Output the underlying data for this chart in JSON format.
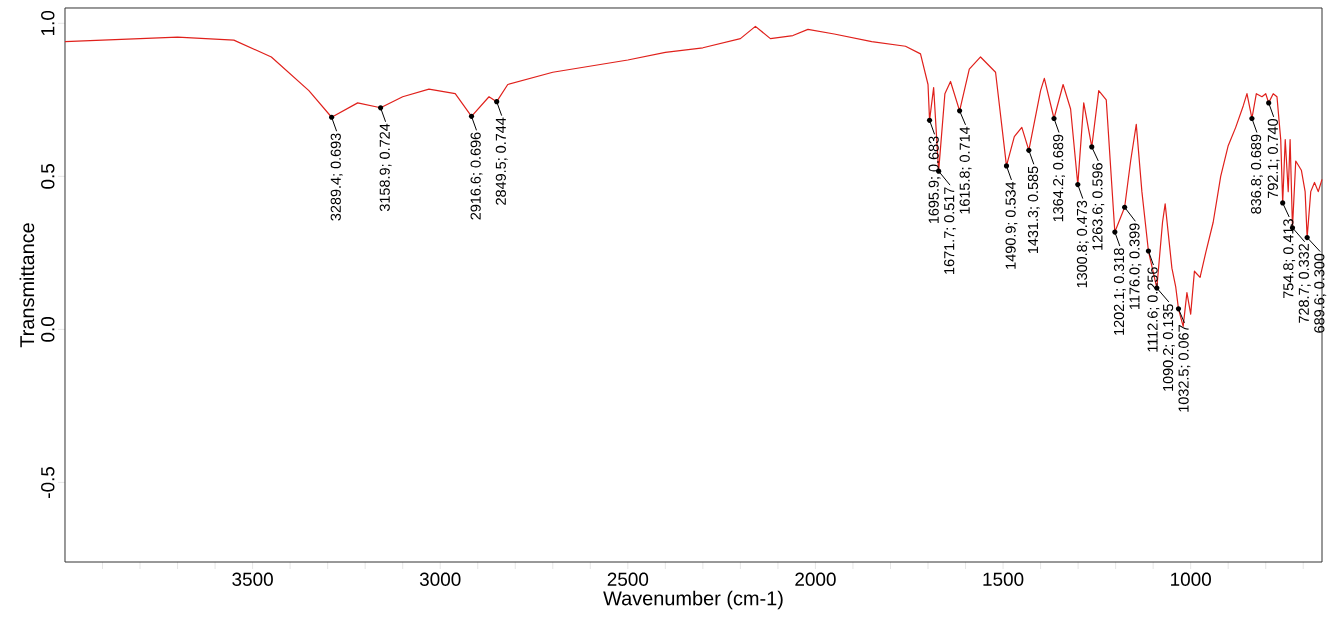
{
  "chart_data": {
    "type": "line",
    "xlabel": "Wavenumber (cm-1)",
    "ylabel": "Transmittance",
    "color": "#e0201b",
    "xlim": [
      4000,
      650
    ],
    "ylim": [
      -0.76,
      1.05
    ],
    "xticks": [
      {
        "value": 3900,
        "label": null
      },
      {
        "value": 3800,
        "label": null
      },
      {
        "value": 3700,
        "label": null
      },
      {
        "value": 3600,
        "label": null
      },
      {
        "value": 3500,
        "label": "3500"
      },
      {
        "value": 3400,
        "label": null
      },
      {
        "value": 3300,
        "label": null
      },
      {
        "value": 3200,
        "label": null
      },
      {
        "value": 3100,
        "label": null
      },
      {
        "value": 3000,
        "label": "3000"
      },
      {
        "value": 2900,
        "label": null
      },
      {
        "value": 2800,
        "label": null
      },
      {
        "value": 2700,
        "label": null
      },
      {
        "value": 2600,
        "label": null
      },
      {
        "value": 2500,
        "label": "2500"
      },
      {
        "value": 2400,
        "label": null
      },
      {
        "value": 2300,
        "label": null
      },
      {
        "value": 2200,
        "label": null
      },
      {
        "value": 2100,
        "label": null
      },
      {
        "value": 2000,
        "label": "2000"
      },
      {
        "value": 1900,
        "label": null
      },
      {
        "value": 1800,
        "label": null
      },
      {
        "value": 1700,
        "label": null
      },
      {
        "value": 1600,
        "label": null
      },
      {
        "value": 1500,
        "label": "1500"
      },
      {
        "value": 1400,
        "label": null
      },
      {
        "value": 1300,
        "label": null
      },
      {
        "value": 1200,
        "label": null
      },
      {
        "value": 1100,
        "label": null
      },
      {
        "value": 1000,
        "label": "1000"
      },
      {
        "value": 900,
        "label": null
      },
      {
        "value": 800,
        "label": null
      },
      {
        "value": 700,
        "label": null
      }
    ],
    "yticks": [
      {
        "value": 1,
        "label": "1.0"
      },
      {
        "value": 0.5,
        "label": "0.5"
      },
      {
        "value": 0,
        "label": "0.0"
      },
      {
        "value": -0.5,
        "label": "-0.5"
      }
    ],
    "x": [
      4000,
      3700,
      3550,
      3450,
      3350,
      3289.4,
      3220,
      3158.9,
      3100,
      3030,
      2960,
      2916.6,
      2870,
      2849.5,
      2820,
      2700,
      2500,
      2400,
      2300,
      2200,
      2160,
      2120,
      2060,
      2020,
      1950,
      1850,
      1760,
      1720,
      1700,
      1695.9,
      1685,
      1671.7,
      1655,
      1640,
      1615.8,
      1590,
      1560,
      1520,
      1490.9,
      1470,
      1450,
      1431.3,
      1400,
      1390,
      1364.2,
      1340,
      1320,
      1300.8,
      1285,
      1263.6,
      1245,
      1225,
      1202.1,
      1176,
      1160,
      1145,
      1130,
      1112.6,
      1090.2,
      1075,
      1068,
      1050,
      1040,
      1032.5,
      1020,
      1010,
      1000,
      990,
      975,
      960,
      940,
      920,
      900,
      880,
      860,
      850,
      836.8,
      825,
      810,
      800,
      792.1,
      780,
      770,
      760,
      754.8,
      748,
      740,
      735,
      728.7,
      720,
      705,
      695,
      689.6,
      680,
      670,
      660,
      650
    ],
    "values": [
      0.94,
      0.955,
      0.945,
      0.89,
      0.78,
      0.693,
      0.74,
      0.724,
      0.76,
      0.785,
      0.77,
      0.696,
      0.76,
      0.744,
      0.8,
      0.84,
      0.88,
      0.905,
      0.92,
      0.95,
      0.99,
      0.95,
      0.96,
      0.98,
      0.965,
      0.94,
      0.925,
      0.9,
      0.8,
      0.683,
      0.79,
      0.517,
      0.77,
      0.81,
      0.714,
      0.85,
      0.89,
      0.84,
      0.534,
      0.63,
      0.66,
      0.585,
      0.78,
      0.82,
      0.689,
      0.8,
      0.72,
      0.473,
      0.74,
      0.596,
      0.78,
      0.75,
      0.318,
      0.399,
      0.55,
      0.67,
      0.45,
      0.256,
      0.135,
      0.35,
      0.41,
      0.2,
      0.14,
      0.067,
      0.01,
      0.12,
      0.05,
      0.19,
      0.17,
      0.25,
      0.35,
      0.5,
      0.6,
      0.66,
      0.73,
      0.77,
      0.689,
      0.77,
      0.76,
      0.77,
      0.74,
      0.77,
      0.76,
      0.62,
      0.413,
      0.62,
      0.45,
      0.62,
      0.332,
      0.55,
      0.52,
      0.45,
      0.3,
      0.45,
      0.48,
      0.45,
      0.49
    ],
    "annotations": [
      {
        "text": "3289.4; 0.693",
        "x": 3289.4,
        "y": 0.693
      },
      {
        "text": "3158.9; 0.724",
        "x": 3158.9,
        "y": 0.724
      },
      {
        "text": "2916.6; 0.696",
        "x": 2916.6,
        "y": 0.696
      },
      {
        "text": "2849.5; 0.744",
        "x": 2849.5,
        "y": 0.744
      },
      {
        "text": "1695.9; 0.683",
        "x": 1695.9,
        "y": 0.683
      },
      {
        "text": "1671.7; 0.517",
        "x": 1671.7,
        "y": 0.517
      },
      {
        "text": "1615.8; 0.714",
        "x": 1615.8,
        "y": 0.714
      },
      {
        "text": "1490.9; 0.534",
        "x": 1490.9,
        "y": 0.534
      },
      {
        "text": "1431.3; 0.585",
        "x": 1431.3,
        "y": 0.585
      },
      {
        "text": "1364.2; 0.689",
        "x": 1364.2,
        "y": 0.689
      },
      {
        "text": "1300.8; 0.473",
        "x": 1300.8,
        "y": 0.473
      },
      {
        "text": "1263.6; 0.596",
        "x": 1263.6,
        "y": 0.596
      },
      {
        "text": "1202.1; 0.318",
        "x": 1202.1,
        "y": 0.318
      },
      {
        "text": "1176.0; 0.399",
        "x": 1176.0,
        "y": 0.399
      },
      {
        "text": "1112.6; 0.256",
        "x": 1112.6,
        "y": 0.256
      },
      {
        "text": "1090.2; 0.135",
        "x": 1090.2,
        "y": 0.135
      },
      {
        "text": "1032.5; 0.067",
        "x": 1032.5,
        "y": 0.067
      },
      {
        "text": "836.8; 0.689",
        "x": 836.8,
        "y": 0.689
      },
      {
        "text": "792.1; 0.740",
        "x": 792.1,
        "y": 0.74
      },
      {
        "text": "754.8; 0.413",
        "x": 754.8,
        "y": 0.413
      },
      {
        "text": "728.7; 0.332",
        "x": 728.7,
        "y": 0.332
      },
      {
        "text": "689.6; 0.300",
        "x": 689.6,
        "y": 0.3
      }
    ]
  }
}
